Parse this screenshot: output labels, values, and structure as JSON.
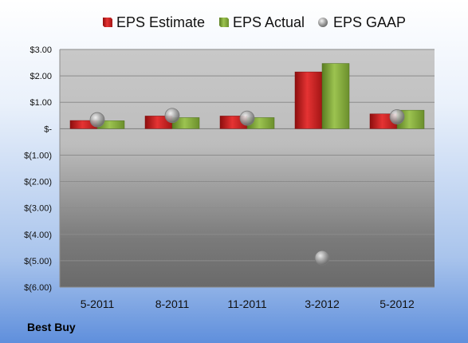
{
  "caption": "Best Buy",
  "chart_data": {
    "type": "bar",
    "title": "",
    "xlabel": "",
    "ylabel": "",
    "categories": [
      "5-2011",
      "8-2011",
      "11-2011",
      "3-2012",
      "5-2012"
    ],
    "series": [
      {
        "name": "EPS Estimate",
        "kind": "bar",
        "color": "#cc2222",
        "values": [
          0.31,
          0.48,
          0.48,
          2.15,
          0.56
        ]
      },
      {
        "name": "EPS Actual",
        "kind": "bar",
        "color": "#7ea63a",
        "values": [
          0.3,
          0.42,
          0.42,
          2.47,
          0.7
        ]
      },
      {
        "name": "EPS GAAP",
        "kind": "scatter",
        "color": "#a8a8a8",
        "values": [
          0.34,
          0.5,
          0.4,
          -4.89,
          0.45
        ]
      }
    ],
    "ylim": [
      -6,
      3
    ],
    "yticks": [
      {
        "value": 3,
        "label": "$3.00"
      },
      {
        "value": 2,
        "label": "$2.00"
      },
      {
        "value": 1,
        "label": "$1.00"
      },
      {
        "value": 0,
        "label": "$-"
      },
      {
        "value": -1,
        "label": "$(1.00)"
      },
      {
        "value": -2,
        "label": "$(2.00)"
      },
      {
        "value": -3,
        "label": "$(3.00)"
      },
      {
        "value": -4,
        "label": "$(4.00)"
      },
      {
        "value": -5,
        "label": "$(5.00)"
      },
      {
        "value": -6,
        "label": "$(6.00)"
      }
    ],
    "grid": true,
    "legend_position": "top"
  }
}
